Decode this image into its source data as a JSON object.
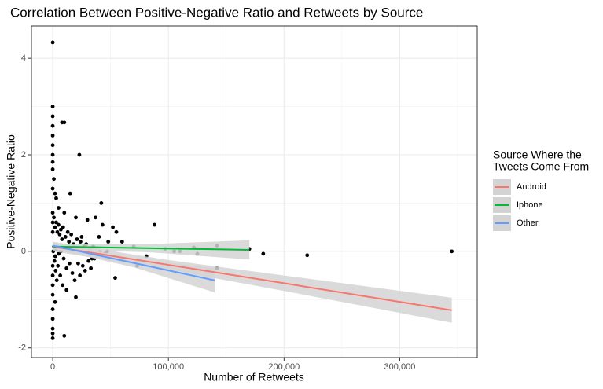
{
  "chart_data": {
    "type": "scatter",
    "title": "Correlation Between Positive-Negative Ratio and Retweets by Source",
    "x_label": "Number of Retweets",
    "y_label": "Positive-Negative Ratio",
    "legend_title": [
      "Source Where the",
      "Tweets Come From"
    ],
    "legend_position": "right",
    "grid": true,
    "point_color": "#000000",
    "band_color": "#d3d3d3",
    "xlim": [
      -18400,
      367000
    ],
    "ylim": [
      -2.2,
      4.67
    ],
    "xticks": [
      0,
      {
        "value": 100000,
        "label": "100,000"
      },
      {
        "value": 200000,
        "label": "200,000"
      },
      {
        "value": 300000,
        "label": "300,000"
      }
    ],
    "yticks": [
      -2,
      0,
      2,
      4
    ],
    "xminor": [
      50000,
      150000,
      250000,
      350000
    ],
    "yminor": [
      -1,
      1,
      3
    ],
    "x": [
      0,
      0,
      0,
      8000,
      10000,
      23000,
      0,
      0,
      0,
      0,
      0,
      1000,
      0,
      2000,
      15000,
      3000,
      0,
      42000,
      5000,
      10000,
      20000,
      37000,
      30000,
      43000,
      52000,
      88000,
      55000,
      60000,
      70000,
      40000,
      25000,
      48000,
      97000,
      105000,
      110000,
      125000,
      182000,
      142000,
      122000,
      170000,
      220000,
      345000,
      142000,
      81000,
      73000,
      54000,
      12000,
      20000,
      0,
      0,
      0,
      0,
      0,
      10000,
      2000,
      0,
      1000,
      2000,
      3000,
      4000,
      5000,
      6000,
      7000,
      8000,
      9000,
      11000,
      13000,
      14000,
      16000,
      18000,
      21000,
      24000,
      27000,
      29000,
      32000,
      35000,
      1500,
      2500,
      3500,
      4500,
      6500,
      8500,
      12000,
      17000,
      19000,
      22000,
      26000,
      28000,
      31000,
      34000,
      38000,
      45000,
      500,
      1200,
      2200,
      3200,
      5200,
      7200,
      9500,
      14500,
      19500,
      23500,
      33000,
      36000,
      41000,
      47000,
      0,
      0,
      0,
      0,
      0,
      0
    ],
    "values": [
      4.33,
      3.0,
      2.8,
      2.67,
      2.67,
      2.0,
      2.6,
      2.4,
      2.2,
      2.0,
      1.85,
      1.5,
      1.3,
      1.2,
      1.2,
      1.1,
      1.7,
      1.0,
      0.9,
      0.8,
      0.7,
      0.7,
      0.65,
      0.55,
      0.5,
      0.55,
      0.4,
      0.2,
      0.1,
      0.3,
      0.3,
      0.2,
      0.05,
      0.0,
      0.0,
      -0.05,
      -0.05,
      0.12,
      0.08,
      0.05,
      -0.08,
      0.0,
      -0.35,
      -0.1,
      -0.3,
      -0.55,
      -0.8,
      -0.95,
      -1.2,
      -1.4,
      -1.6,
      -1.8,
      -1.7,
      -1.75,
      -1.05,
      -0.9,
      0.7,
      0.5,
      0.6,
      0.4,
      0.55,
      0.35,
      0.45,
      0.25,
      0.5,
      0.3,
      0.4,
      0.2,
      0.35,
      0.15,
      0.25,
      0.2,
      0.1,
      0.15,
      0.05,
      0.1,
      -0.2,
      -0.4,
      -0.6,
      -0.3,
      -0.5,
      -0.7,
      -0.35,
      -0.45,
      -0.6,
      -0.25,
      -0.3,
      -0.4,
      -0.2,
      -0.15,
      -0.1,
      -0.05,
      0.0,
      0.1,
      -0.1,
      0.05,
      -0.05,
      0.0,
      -0.15,
      -0.25,
      0.08,
      -0.5,
      -0.35,
      -0.15,
      0.0,
      0.0,
      0.8,
      0.6,
      0.4,
      -0.3,
      -0.5,
      -0.7
    ],
    "series": [
      {
        "name": "Android",
        "color": "#F8766D",
        "x": [
          0,
          100000,
          200000,
          345000
        ],
        "values": [
          0.1,
          -0.28,
          -0.66,
          -1.22
        ],
        "lower": [
          0.0,
          -0.38,
          -0.82,
          -1.48
        ],
        "upper": [
          0.2,
          -0.18,
          -0.5,
          -0.96
        ]
      },
      {
        "name": "Iphone",
        "color": "#00BA38",
        "x": [
          0,
          85000,
          170000
        ],
        "values": [
          0.1,
          0.065,
          0.03
        ],
        "lower": [
          0.05,
          -0.02,
          -0.17
        ],
        "upper": [
          0.15,
          0.15,
          0.23
        ]
      },
      {
        "name": "Other",
        "color": "#619CFF",
        "x": [
          0,
          70000,
          140000
        ],
        "values": [
          0.12,
          -0.24,
          -0.6
        ],
        "lower": [
          0.05,
          -0.33,
          -0.85
        ],
        "upper": [
          0.19,
          -0.15,
          -0.35
        ]
      }
    ]
  }
}
